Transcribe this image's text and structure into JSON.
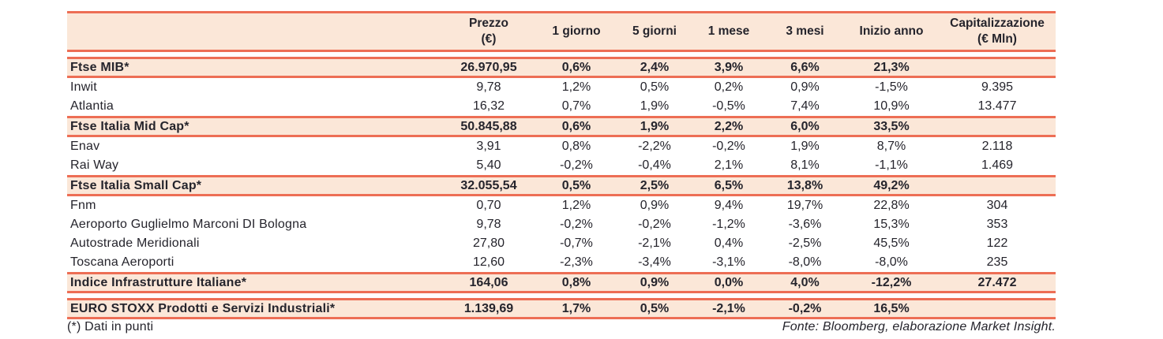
{
  "colors": {
    "accent_line": "#ed6e55",
    "band_background": "#fbe7d8",
    "text": "#25242c",
    "page_background": "#ffffff"
  },
  "table": {
    "columns": [
      {
        "label": "",
        "sublabel": ""
      },
      {
        "label": "Prezzo",
        "sublabel": "(€)"
      },
      {
        "label": "1 giorno",
        "sublabel": ""
      },
      {
        "label": "5 giorni",
        "sublabel": ""
      },
      {
        "label": "1 mese",
        "sublabel": ""
      },
      {
        "label": "3 mesi",
        "sublabel": ""
      },
      {
        "label": "Inizio anno",
        "sublabel": ""
      },
      {
        "label": "Capitalizzazione",
        "sublabel": "(€ Mln)"
      }
    ],
    "rows": [
      {
        "type": "index",
        "gap_before": true,
        "name": "Ftse MIB*",
        "prezzo": "26.970,95",
        "g1": "0,6%",
        "g5": "2,4%",
        "m1": "3,9%",
        "m3": "6,6%",
        "ytd": "21,3%",
        "cap": ""
      },
      {
        "type": "stock",
        "gap_before": false,
        "name": "Inwit",
        "prezzo": "9,78",
        "g1": "1,2%",
        "g5": "0,5%",
        "m1": "0,2%",
        "m3": "0,9%",
        "ytd": "-1,5%",
        "cap": "9.395"
      },
      {
        "type": "stock",
        "gap_before": false,
        "name": "Atlantia",
        "prezzo": "16,32",
        "g1": "0,7%",
        "g5": "1,9%",
        "m1": "-0,5%",
        "m3": "7,4%",
        "ytd": "10,9%",
        "cap": "13.477"
      },
      {
        "type": "index",
        "gap_before": false,
        "name": "Ftse Italia Mid Cap*",
        "prezzo": "50.845,88",
        "g1": "0,6%",
        "g5": "1,9%",
        "m1": "2,2%",
        "m3": "6,0%",
        "ytd": "33,5%",
        "cap": ""
      },
      {
        "type": "stock",
        "gap_before": false,
        "name": "Enav",
        "prezzo": "3,91",
        "g1": "0,8%",
        "g5": "-2,2%",
        "m1": "-0,2%",
        "m3": "1,9%",
        "ytd": "8,7%",
        "cap": "2.118"
      },
      {
        "type": "stock",
        "gap_before": false,
        "name": "Rai Way",
        "prezzo": "5,40",
        "g1": "-0,2%",
        "g5": "-0,4%",
        "m1": "2,1%",
        "m3": "8,1%",
        "ytd": "-1,1%",
        "cap": "1.469"
      },
      {
        "type": "index",
        "gap_before": false,
        "name": "Ftse Italia Small Cap*",
        "prezzo": "32.055,54",
        "g1": "0,5%",
        "g5": "2,5%",
        "m1": "6,5%",
        "m3": "13,8%",
        "ytd": "49,2%",
        "cap": ""
      },
      {
        "type": "stock",
        "gap_before": false,
        "name": "Fnm",
        "prezzo": "0,70",
        "g1": "1,2%",
        "g5": "0,9%",
        "m1": "9,4%",
        "m3": "19,7%",
        "ytd": "22,8%",
        "cap": "304"
      },
      {
        "type": "stock",
        "gap_before": false,
        "name": "Aeroporto Guglielmo Marconi DI Bologna",
        "prezzo": "9,78",
        "g1": "-0,2%",
        "g5": "-0,2%",
        "m1": "-1,2%",
        "m3": "-3,6%",
        "ytd": "15,3%",
        "cap": "353"
      },
      {
        "type": "stock",
        "gap_before": false,
        "name": "Autostrade Meridionali",
        "prezzo": "27,80",
        "g1": "-0,7%",
        "g5": "-2,1%",
        "m1": "0,4%",
        "m3": "-2,5%",
        "ytd": "45,5%",
        "cap": "122"
      },
      {
        "type": "stock",
        "gap_before": false,
        "name": "Toscana Aeroporti",
        "prezzo": "12,60",
        "g1": "-2,3%",
        "g5": "-3,4%",
        "m1": "-3,1%",
        "m3": "-8,0%",
        "ytd": "-8,0%",
        "cap": "235"
      },
      {
        "type": "index",
        "gap_before": false,
        "name": "Indice Infrastrutture Italiane*",
        "prezzo": "164,06",
        "g1": "0,8%",
        "g5": "0,9%",
        "m1": "0,0%",
        "m3": "4,0%",
        "ytd": "-12,2%",
        "cap": "27.472"
      },
      {
        "type": "index",
        "gap_before": true,
        "name": "EURO STOXX Prodotti e Servizi Industriali*",
        "prezzo": "1.139,69",
        "g1": "1,7%",
        "g5": "0,5%",
        "m1": "-2,1%",
        "m3": "-0,2%",
        "ytd": "16,5%",
        "cap": ""
      }
    ]
  },
  "footer": {
    "note": "(*) Dati in punti",
    "source": "Fonte: Bloomberg, elaborazione Market Insight."
  }
}
